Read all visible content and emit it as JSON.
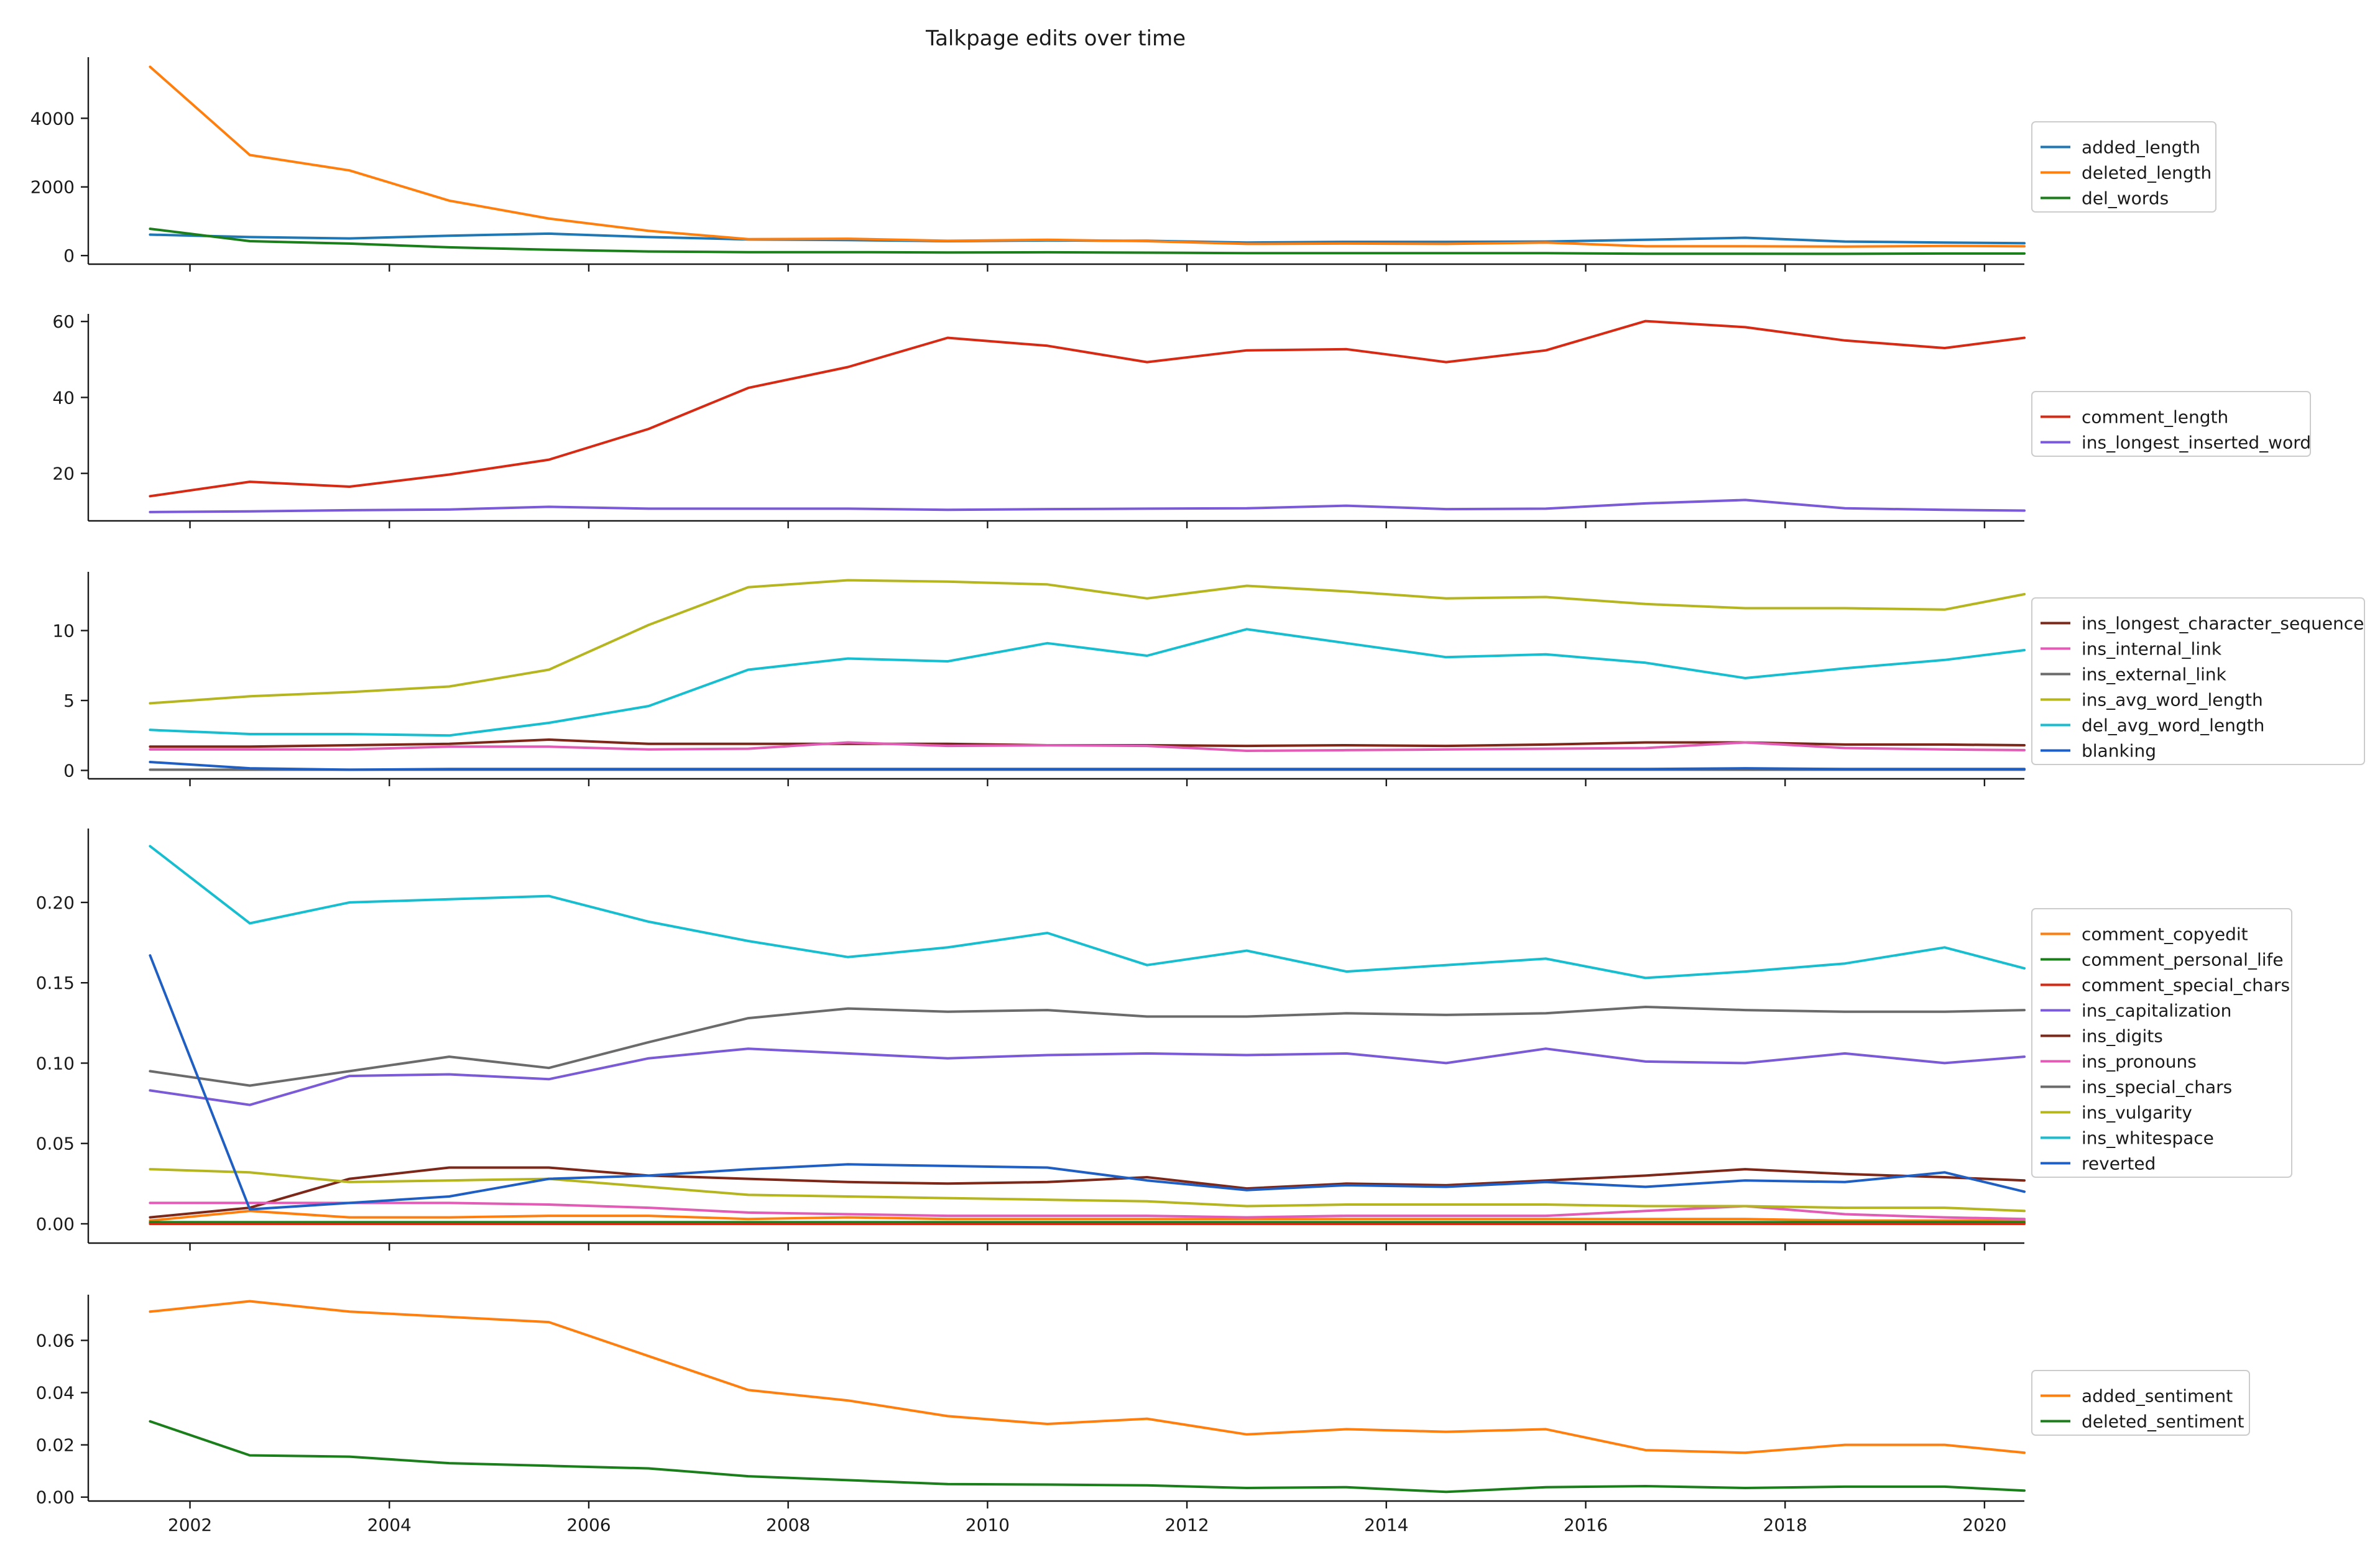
{
  "title": "Talkpage edits over time",
  "chart_data": [
    {
      "type": "line",
      "x": [
        2001.6,
        2002.6,
        2003.6,
        2004.6,
        2005.6,
        2006.6,
        2007.6,
        2008.6,
        2009.6,
        2010.6,
        2011.6,
        2012.6,
        2013.6,
        2014.6,
        2015.6,
        2016.6,
        2017.6,
        2018.6,
        2019.6,
        2020.4
      ],
      "xlim": [
        2000.98,
        2020.4
      ],
      "ylim": [
        -250,
        5780
      ],
      "yticks": [
        0,
        2000,
        4000
      ],
      "xticks": [
        2002,
        2004,
        2006,
        2008,
        2010,
        2012,
        2014,
        2016,
        2018,
        2020
      ],
      "show_xtick_labels": false,
      "grid": false,
      "legend": "right",
      "series": [
        {
          "name": "added_length",
          "color": "#1f77b4",
          "values": [
            610,
            540,
            500,
            580,
            640,
            540,
            470,
            450,
            420,
            440,
            430,
            380,
            400,
            400,
            410,
            460,
            520,
            410,
            380,
            360
          ]
        },
        {
          "name": "deleted_length",
          "color": "#ff7f0e",
          "values": [
            5500,
            2930,
            2480,
            1600,
            1080,
            720,
            480,
            490,
            430,
            460,
            420,
            340,
            350,
            340,
            380,
            270,
            270,
            260,
            280,
            270
          ]
        },
        {
          "name": "del_words",
          "color": "#1a7f1a",
          "values": [
            780,
            420,
            350,
            240,
            170,
            120,
            100,
            100,
            90,
            95,
            85,
            70,
            70,
            70,
            70,
            55,
            55,
            50,
            60,
            60
          ]
        }
      ]
    },
    {
      "type": "line",
      "x": [
        2001.6,
        2002.6,
        2003.6,
        2004.6,
        2005.6,
        2006.6,
        2007.6,
        2008.6,
        2009.6,
        2010.6,
        2011.6,
        2012.6,
        2013.6,
        2014.6,
        2015.6,
        2016.6,
        2017.6,
        2018.6,
        2019.6,
        2020.4
      ],
      "xlim": [
        2000.98,
        2020.4
      ],
      "ylim": [
        7.5,
        62
      ],
      "yticks": [
        20,
        40,
        60
      ],
      "xticks": [
        2002,
        2004,
        2006,
        2008,
        2010,
        2012,
        2014,
        2016,
        2018,
        2020
      ],
      "show_xtick_labels": false,
      "grid": false,
      "legend": "right",
      "series": [
        {
          "name": "comment_length",
          "color": "#d62a14",
          "values": [
            14.0,
            17.8,
            16.5,
            19.7,
            23.6,
            31.7,
            42.5,
            48.0,
            55.7,
            53.6,
            49.3,
            52.4,
            52.7,
            49.3,
            52.4,
            60.1,
            58.5,
            55.0,
            53.0,
            55.7
          ]
        },
        {
          "name": "ins_longest_inserted_word",
          "color": "#7a5ad6",
          "values": [
            9.8,
            10.0,
            10.3,
            10.5,
            11.2,
            10.7,
            10.7,
            10.7,
            10.4,
            10.6,
            10.7,
            10.8,
            11.5,
            10.6,
            10.7,
            12.1,
            13.0,
            10.8,
            10.4,
            10.2
          ]
        }
      ]
    },
    {
      "type": "line",
      "x": [
        2001.6,
        2002.6,
        2003.6,
        2004.6,
        2005.6,
        2006.6,
        2007.6,
        2008.6,
        2009.6,
        2010.6,
        2011.6,
        2012.6,
        2013.6,
        2014.6,
        2015.6,
        2016.6,
        2017.6,
        2018.6,
        2019.6,
        2020.4
      ],
      "xlim": [
        2000.98,
        2020.4
      ],
      "ylim": [
        -0.6,
        14.2
      ],
      "yticks": [
        0,
        5,
        10
      ],
      "xticks": [
        2002,
        2004,
        2006,
        2008,
        2010,
        2012,
        2014,
        2016,
        2018,
        2020
      ],
      "show_xtick_labels": false,
      "grid": false,
      "legend": "right",
      "series": [
        {
          "name": "ins_longest_character_sequence",
          "color": "#7d2719",
          "values": [
            1.7,
            1.7,
            1.8,
            1.9,
            2.2,
            1.9,
            1.9,
            1.9,
            1.9,
            1.8,
            1.8,
            1.75,
            1.8,
            1.75,
            1.85,
            2.0,
            2.0,
            1.85,
            1.85,
            1.8
          ]
        },
        {
          "name": "ins_internal_link",
          "color": "#e05cb5",
          "values": [
            1.5,
            1.5,
            1.5,
            1.7,
            1.7,
            1.5,
            1.55,
            2.0,
            1.75,
            1.8,
            1.75,
            1.4,
            1.45,
            1.5,
            1.55,
            1.6,
            2.0,
            1.6,
            1.5,
            1.45
          ]
        },
        {
          "name": "ins_external_link",
          "color": "#6b6b6b",
          "values": [
            0.05,
            0.05,
            0.05,
            0.05,
            0.05,
            0.05,
            0.05,
            0.05,
            0.05,
            0.05,
            0.05,
            0.05,
            0.05,
            0.05,
            0.05,
            0.05,
            0.05,
            0.05,
            0.05,
            0.05
          ]
        },
        {
          "name": "ins_avg_word_length",
          "color": "#b5b520",
          "values": [
            4.8,
            5.3,
            5.6,
            6.0,
            7.2,
            10.4,
            13.1,
            13.6,
            13.5,
            13.3,
            12.3,
            13.2,
            12.8,
            12.3,
            12.4,
            11.9,
            11.6,
            11.6,
            11.5,
            12.6
          ]
        },
        {
          "name": "del_avg_word_length",
          "color": "#17becf",
          "values": [
            2.9,
            2.6,
            2.6,
            2.5,
            3.4,
            4.6,
            7.2,
            8.0,
            7.8,
            9.1,
            8.2,
            10.1,
            9.1,
            8.1,
            8.3,
            7.7,
            6.6,
            7.3,
            7.9,
            8.6
          ]
        },
        {
          "name": "blanking",
          "color": "#1f5fc4",
          "values": [
            0.6,
            0.15,
            0.05,
            0.1,
            0.1,
            0.1,
            0.1,
            0.1,
            0.1,
            0.1,
            0.1,
            0.1,
            0.1,
            0.1,
            0.1,
            0.1,
            0.15,
            0.1,
            0.1,
            0.1
          ]
        }
      ]
    },
    {
      "type": "line",
      "x": [
        2001.6,
        2002.6,
        2003.6,
        2004.6,
        2005.6,
        2006.6,
        2007.6,
        2008.6,
        2009.6,
        2010.6,
        2011.6,
        2012.6,
        2013.6,
        2014.6,
        2015.6,
        2016.6,
        2017.6,
        2018.6,
        2019.6,
        2020.4
      ],
      "xlim": [
        2000.98,
        2020.4
      ],
      "ylim": [
        -0.012,
        0.246
      ],
      "yticks": [
        0.0,
        0.05,
        0.1,
        0.15,
        0.2
      ],
      "ytick_labels": [
        "0.00",
        "0.05",
        "0.10",
        "0.15",
        "0.20"
      ],
      "xticks": [
        2002,
        2004,
        2006,
        2008,
        2010,
        2012,
        2014,
        2016,
        2018,
        2020
      ],
      "show_xtick_labels": false,
      "grid": false,
      "legend": "right",
      "series": [
        {
          "name": "comment_copyedit",
          "color": "#ff7f0e",
          "values": [
            0.002,
            0.008,
            0.004,
            0.004,
            0.005,
            0.005,
            0.003,
            0.004,
            0.003,
            0.003,
            0.003,
            0.003,
            0.003,
            0.003,
            0.003,
            0.003,
            0.003,
            0.002,
            0.002,
            0.002
          ]
        },
        {
          "name": "comment_personal_life",
          "color": "#1a7f1a",
          "values": [
            0.001,
            0.001,
            0.001,
            0.001,
            0.001,
            0.001,
            0.001,
            0.001,
            0.001,
            0.001,
            0.001,
            0.001,
            0.001,
            0.001,
            0.001,
            0.001,
            0.001,
            0.001,
            0.001,
            0.001
          ]
        },
        {
          "name": "comment_special_chars",
          "color": "#d62a14",
          "values": [
            0.0,
            0.0,
            0.0,
            0.0,
            0.0,
            0.0,
            0.0,
            0.0,
            0.0,
            0.0,
            0.0,
            0.0,
            0.0,
            0.0,
            0.0,
            0.0,
            0.0,
            0.0,
            0.0,
            0.0
          ]
        },
        {
          "name": "ins_capitalization",
          "color": "#7a5ad6",
          "values": [
            0.083,
            0.074,
            0.092,
            0.093,
            0.09,
            0.103,
            0.109,
            0.106,
            0.103,
            0.105,
            0.106,
            0.105,
            0.106,
            0.1,
            0.109,
            0.101,
            0.1,
            0.106,
            0.1,
            0.104
          ]
        },
        {
          "name": "ins_digits",
          "color": "#7d2719",
          "values": [
            0.004,
            0.01,
            0.028,
            0.035,
            0.035,
            0.03,
            0.028,
            0.026,
            0.025,
            0.026,
            0.029,
            0.022,
            0.025,
            0.024,
            0.027,
            0.03,
            0.034,
            0.031,
            0.029,
            0.027
          ]
        },
        {
          "name": "ins_pronouns",
          "color": "#e05cb5",
          "values": [
            0.013,
            0.013,
            0.013,
            0.013,
            0.012,
            0.01,
            0.007,
            0.006,
            0.005,
            0.005,
            0.005,
            0.004,
            0.005,
            0.005,
            0.005,
            0.008,
            0.011,
            0.006,
            0.004,
            0.003
          ]
        },
        {
          "name": "ins_special_chars",
          "color": "#6b6b6b",
          "values": [
            0.095,
            0.086,
            0.095,
            0.104,
            0.097,
            0.113,
            0.128,
            0.134,
            0.132,
            0.133,
            0.129,
            0.129,
            0.131,
            0.13,
            0.131,
            0.135,
            0.133,
            0.132,
            0.132,
            0.133
          ]
        },
        {
          "name": "ins_vulgarity",
          "color": "#b5b520",
          "values": [
            0.034,
            0.032,
            0.026,
            0.027,
            0.028,
            0.023,
            0.018,
            0.017,
            0.016,
            0.015,
            0.014,
            0.011,
            0.012,
            0.012,
            0.012,
            0.011,
            0.011,
            0.01,
            0.01,
            0.008
          ]
        },
        {
          "name": "ins_whitespace",
          "color": "#17becf",
          "values": [
            0.235,
            0.187,
            0.2,
            0.202,
            0.204,
            0.188,
            0.176,
            0.166,
            0.172,
            0.181,
            0.161,
            0.17,
            0.157,
            0.161,
            0.165,
            0.153,
            0.157,
            0.162,
            0.172,
            0.159
          ]
        },
        {
          "name": "reverted",
          "color": "#1f5fc4",
          "values": [
            0.167,
            0.009,
            0.013,
            0.017,
            0.028,
            0.03,
            0.034,
            0.037,
            0.036,
            0.035,
            0.027,
            0.021,
            0.024,
            0.023,
            0.026,
            0.023,
            0.027,
            0.026,
            0.032,
            0.02
          ]
        }
      ]
    },
    {
      "type": "line",
      "x": [
        2001.6,
        2002.6,
        2003.6,
        2004.6,
        2005.6,
        2006.6,
        2007.6,
        2008.6,
        2009.6,
        2010.6,
        2011.6,
        2012.6,
        2013.6,
        2014.6,
        2015.6,
        2016.6,
        2017.6,
        2018.6,
        2019.6,
        2020.4
      ],
      "xlim": [
        2000.98,
        2020.4
      ],
      "ylim": [
        -0.0015,
        0.0775
      ],
      "yticks": [
        0.0,
        0.02,
        0.04,
        0.06
      ],
      "ytick_labels": [
        "0.00",
        "0.02",
        "0.04",
        "0.06"
      ],
      "xticks": [
        2002,
        2004,
        2006,
        2008,
        2010,
        2012,
        2014,
        2016,
        2018,
        2020
      ],
      "show_xtick_labels": true,
      "grid": false,
      "legend": "right",
      "series": [
        {
          "name": "added_sentiment",
          "color": "#ff7f0e",
          "values": [
            0.071,
            0.075,
            0.071,
            0.069,
            0.067,
            0.054,
            0.041,
            0.037,
            0.031,
            0.028,
            0.03,
            0.024,
            0.026,
            0.025,
            0.026,
            0.018,
            0.017,
            0.02,
            0.02,
            0.017
          ]
        },
        {
          "name": "deleted_sentiment",
          "color": "#1a7f1a",
          "values": [
            0.029,
            0.016,
            0.0155,
            0.013,
            0.012,
            0.011,
            0.008,
            0.0065,
            0.005,
            0.0048,
            0.0045,
            0.0035,
            0.0038,
            0.002,
            0.0038,
            0.0042,
            0.0035,
            0.004,
            0.004,
            0.0025
          ]
        }
      ]
    }
  ]
}
